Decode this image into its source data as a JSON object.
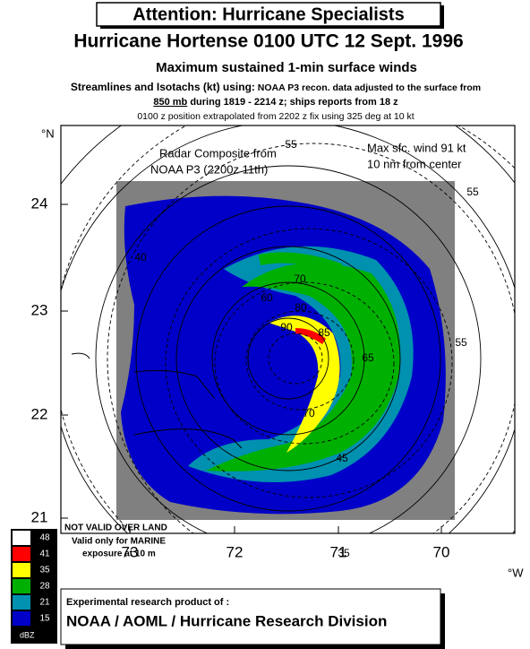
{
  "header": {
    "banner": "Attention:  Hurricane Specialists",
    "title": "Hurricane Hortense 0100 UTC 12 Sept. 1996",
    "subtitle": "Maximum sustained 1-min surface winds",
    "line1_bold": "Streamlines and Isotachs (kt) using:",
    "line1_rest": " NOAA P3 recon. data adjusted to the surface from",
    "line2_underlined": "850 mb",
    "line2_rest": " during 1819 - 2214 z; ships reports from 18 z",
    "line3": "0100 z position extrapolated from 2202 z  fix using 325 deg at 10 kt"
  },
  "map": {
    "lat_unit": "°N",
    "lat_labels": [
      24,
      23,
      22,
      21
    ],
    "lon_unit": "°W",
    "lon_labels": [
      73,
      72,
      71,
      70
    ],
    "radar_note": [
      "Radar Composite from",
      "NOAA P3 (2200z 11th)"
    ],
    "max_wind_note": [
      "Max sfc. wind 91 kt",
      "10 nm from center"
    ],
    "land_warning": "NOT VALID OVER LAND",
    "marine_note": [
      "Valid only for MARINE",
      "exposure at 10 m"
    ],
    "isotach_labels": [
      55,
      55,
      40,
      60,
      70,
      80,
      90,
      85,
      65,
      70,
      55,
      45,
      35
    ]
  },
  "legend": {
    "unit": "dBZ",
    "levels": [
      {
        "label": 48,
        "color": "#ffffff"
      },
      {
        "label": 41,
        "color": "#ff0000"
      },
      {
        "label": 35,
        "color": "#ffff00"
      },
      {
        "label": 28,
        "color": "#00b000"
      },
      {
        "label": 21,
        "color": "#0090b0"
      },
      {
        "label": 15,
        "color": "#0000c8"
      }
    ]
  },
  "footer": {
    "line1": "Experimental research product of :",
    "line2": "NOAA / AOML / Hurricane Research Division"
  }
}
